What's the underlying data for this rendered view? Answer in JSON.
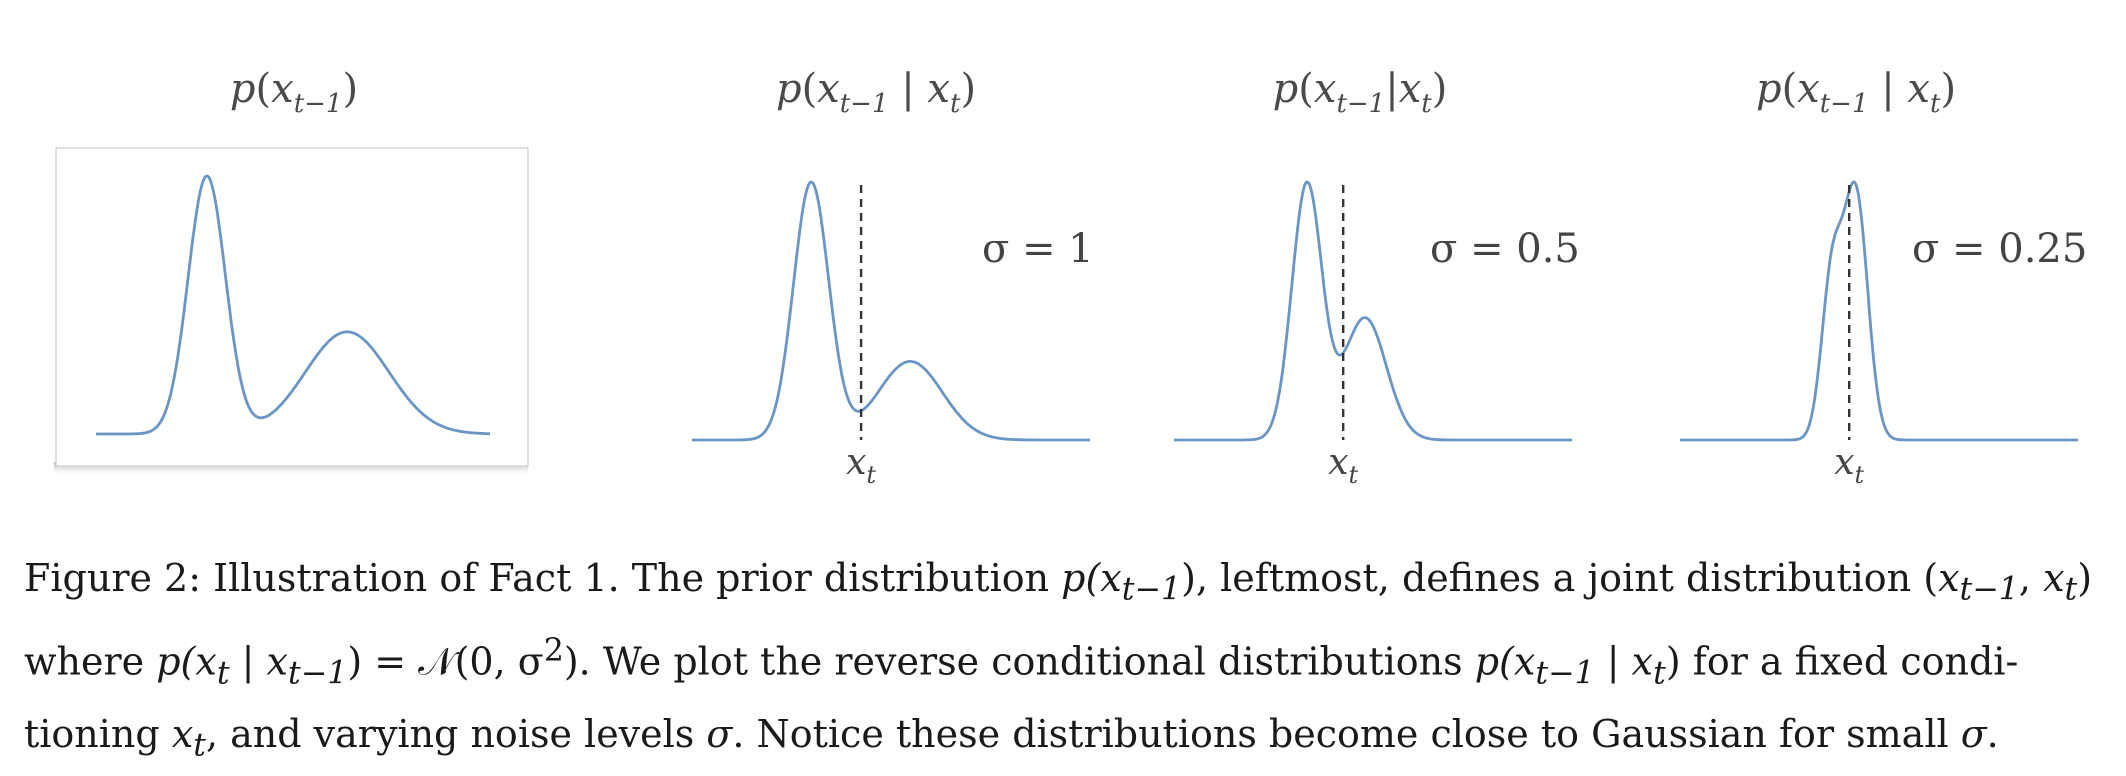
{
  "figure": {
    "panels": [
      {
        "id": "prior",
        "title_fn": "p",
        "title_var": "x",
        "title_sub": "t−1",
        "cond": "",
        "sigma_label": "",
        "xt_label": ""
      },
      {
        "id": "sigma1",
        "title_fn": "p",
        "title_var": "x",
        "title_sub": "t−1",
        "cond": "x",
        "cond_sub": "t",
        "sigma_label": "σ = 1",
        "xt_label": "x",
        "xt_sub": "t"
      },
      {
        "id": "sigma05",
        "title_fn": "p",
        "title_var": "x",
        "title_sub": "t−1",
        "cond": "x",
        "cond_sub": "t",
        "sigma_label": "σ = 0.5",
        "xt_label": "x",
        "xt_sub": "t"
      },
      {
        "id": "sigma025",
        "title_fn": "p",
        "title_var": "x",
        "title_sub": "t−1",
        "cond": "x",
        "cond_sub": "t",
        "sigma_label": "σ = 0.25",
        "xt_label": "x",
        "xt_sub": "t"
      }
    ]
  },
  "chart_data": [
    {
      "type": "line",
      "title": "p(x_{t−1})",
      "mixture": [
        {
          "mean": 1.25,
          "sd": 0.38,
          "weight": 0.53
        },
        {
          "mean": 4.1,
          "sd": 0.85,
          "weight": 0.47
        }
      ],
      "x_range": [
        -1.0,
        7.0
      ]
    },
    {
      "type": "line",
      "title": "p(x_{t−1} | x_t)",
      "sigma": 1,
      "x_t": 2.4,
      "x_range": [
        -1.0,
        7.0
      ]
    },
    {
      "type": "line",
      "title": "p(x_{t−1} | x_t)",
      "sigma": 0.5,
      "x_t": 2.4,
      "x_range": [
        -1.0,
        7.0
      ]
    },
    {
      "type": "line",
      "title": "p(x_{t−1} | x_t)",
      "sigma": 0.25,
      "x_t": 2.4,
      "x_range": [
        -1.0,
        7.0
      ]
    }
  ],
  "caption": {
    "label": "Figure 2:",
    "part1": " Illustration of Fact 1. The prior distribution ",
    "prior": "p(x",
    "prior_sub": "t−1",
    "part2": "), leftmost, defines a joint distribution (",
    "joint_a": "x",
    "joint_a_sub": "t−1",
    "joint_b": "x",
    "joint_b_sub": "t",
    "part3": ")",
    "part4": "where ",
    "lik": "p(x",
    "lik_sub1": "t",
    "lik_mid": " | x",
    "lik_sub2": "t−1",
    "part5": ") = 𝒩(0, σ",
    "part5_sup": "2",
    "part6": "). We plot the reverse conditional distributions ",
    "rev": "p(x",
    "rev_sub1": "t−1",
    "rev_mid": " | x",
    "rev_sub2": "t",
    "part7": ") for a fixed condi-",
    "part8": "tioning ",
    "cond_var": "x",
    "cond_var_sub": "t",
    "part9": ", and varying noise levels ",
    "sigma": "σ",
    "part10": ". Notice these distributions become close to Gaussian for small ",
    "sigma2": "σ",
    "part11": "."
  }
}
